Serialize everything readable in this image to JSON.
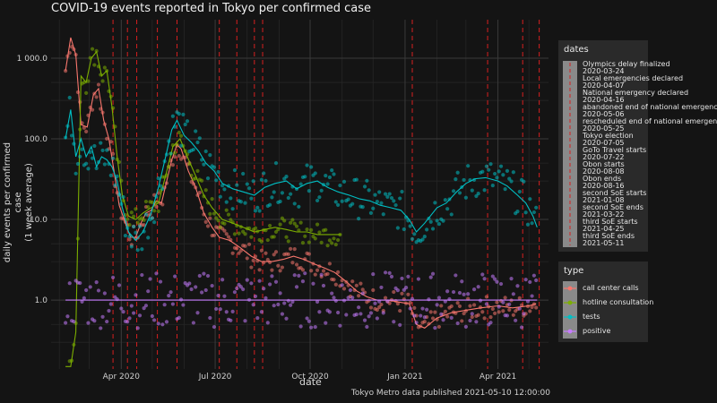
{
  "chart_data": {
    "type": "scatter",
    "title": "COVID-19 events reported in Tokyo per confirmed case",
    "xlabel": "date",
    "ylabel": "daily events per confirmed case\n(1 week average)",
    "caption": "Tokyo Metro data published 2021-05-10 12:00:00",
    "y_scale": "log10",
    "ylim": [
      0.14,
      3000
    ],
    "xlim": [
      "2020-01-24",
      "2021-05-20"
    ],
    "x_ticks": [
      {
        "date": "2020-04-01",
        "label": "Apr 2020"
      },
      {
        "date": "2020-07-01",
        "label": "Jul 2020"
      },
      {
        "date": "2020-10-01",
        "label": "Oct 2020"
      },
      {
        "date": "2021-01-01",
        "label": "Jan 2021"
      },
      {
        "date": "2021-04-01",
        "label": "Apr 2021"
      }
    ],
    "y_ticks": [
      {
        "value": 1,
        "label": "1.0"
      },
      {
        "value": 10,
        "label": "10.0"
      },
      {
        "value": 100,
        "label": "100.0"
      },
      {
        "value": 1000,
        "label": "1 000.0"
      }
    ],
    "grid": true,
    "legend_position": "right",
    "series": [
      {
        "name": "call center calls",
        "color": "#f8766d",
        "points": [
          [
            "2020-02-07",
            700
          ],
          [
            "2020-02-12",
            1800
          ],
          [
            "2020-02-17",
            1100
          ],
          [
            "2020-02-22",
            150
          ],
          [
            "2020-02-28",
            140
          ],
          [
            "2020-03-05",
            350
          ],
          [
            "2020-03-10",
            420
          ],
          [
            "2020-03-15",
            170
          ],
          [
            "2020-03-20",
            100
          ],
          [
            "2020-03-25",
            40
          ],
          [
            "2020-03-30",
            15
          ],
          [
            "2020-04-05",
            9
          ],
          [
            "2020-04-10",
            6
          ],
          [
            "2020-04-15",
            6
          ],
          [
            "2020-04-20",
            9
          ],
          [
            "2020-04-25",
            12
          ],
          [
            "2020-04-30",
            13
          ],
          [
            "2020-05-05",
            17
          ],
          [
            "2020-05-10",
            16
          ],
          [
            "2020-05-15",
            30
          ],
          [
            "2020-05-20",
            55
          ],
          [
            "2020-05-25",
            85
          ],
          [
            "2020-05-29",
            75
          ],
          [
            "2020-06-05",
            40
          ],
          [
            "2020-06-12",
            25
          ],
          [
            "2020-06-20",
            12
          ],
          [
            "2020-06-28",
            8
          ],
          [
            "2020-07-05",
            6
          ],
          [
            "2020-07-15",
            5.5
          ],
          [
            "2020-07-25",
            4.5
          ],
          [
            "2020-08-05",
            3.5
          ],
          [
            "2020-08-15",
            3
          ],
          [
            "2020-08-25",
            3
          ],
          [
            "2020-09-05",
            3.2
          ],
          [
            "2020-09-15",
            3.5
          ],
          [
            "2020-09-25",
            3.2
          ],
          [
            "2020-10-05",
            2.8
          ],
          [
            "2020-10-15",
            2.5
          ],
          [
            "2020-10-25",
            2.2
          ],
          [
            "2020-11-05",
            1.7
          ],
          [
            "2020-11-15",
            1.3
          ],
          [
            "2020-11-25",
            1.1
          ],
          [
            "2020-12-05",
            1.0
          ],
          [
            "2020-12-15",
            1.0
          ],
          [
            "2020-12-25",
            0.95
          ],
          [
            "2021-01-05",
            0.9
          ],
          [
            "2021-01-12",
            0.5
          ],
          [
            "2021-01-20",
            0.45
          ],
          [
            "2021-02-01",
            0.6
          ],
          [
            "2021-02-15",
            0.7
          ],
          [
            "2021-03-01",
            0.75
          ],
          [
            "2021-03-15",
            0.8
          ],
          [
            "2021-04-01",
            0.85
          ],
          [
            "2021-04-15",
            0.8
          ],
          [
            "2021-05-01",
            0.85
          ],
          [
            "2021-05-08",
            0.9
          ]
        ]
      },
      {
        "name": "hotline consultation",
        "color": "#7cae00",
        "points": [
          [
            "2020-02-07",
            0.15
          ],
          [
            "2020-02-12",
            0.15
          ],
          [
            "2020-02-17",
            0.4
          ],
          [
            "2020-02-22",
            600
          ],
          [
            "2020-02-27",
            500
          ],
          [
            "2020-03-03",
            1000
          ],
          [
            "2020-03-08",
            1200
          ],
          [
            "2020-03-13",
            600
          ],
          [
            "2020-03-18",
            700
          ],
          [
            "2020-03-23",
            250
          ],
          [
            "2020-03-28",
            60
          ],
          [
            "2020-04-02",
            20
          ],
          [
            "2020-04-08",
            11
          ],
          [
            "2020-04-15",
            10
          ],
          [
            "2020-04-22",
            12
          ],
          [
            "2020-04-30",
            14
          ],
          [
            "2020-05-07",
            16
          ],
          [
            "2020-05-14",
            35
          ],
          [
            "2020-05-21",
            80
          ],
          [
            "2020-05-28",
            100
          ],
          [
            "2020-06-04",
            60
          ],
          [
            "2020-06-12",
            35
          ],
          [
            "2020-06-20",
            20
          ],
          [
            "2020-06-28",
            14
          ],
          [
            "2020-07-08",
            10
          ],
          [
            "2020-07-18",
            9
          ],
          [
            "2020-07-28",
            8
          ],
          [
            "2020-08-08",
            7
          ],
          [
            "2020-08-18",
            7.5
          ],
          [
            "2020-08-28",
            8
          ],
          [
            "2020-09-08",
            7.5
          ],
          [
            "2020-09-18",
            7
          ],
          [
            "2020-09-28",
            7
          ],
          [
            "2020-10-08",
            6.5
          ],
          [
            "2020-10-18",
            6.5
          ],
          [
            "2020-10-31",
            6.5
          ]
        ]
      },
      {
        "name": "tests",
        "color": "#00bfc4",
        "points": [
          [
            "2020-02-07",
            100
          ],
          [
            "2020-02-12",
            230
          ],
          [
            "2020-02-17",
            60
          ],
          [
            "2020-02-22",
            100
          ],
          [
            "2020-02-27",
            60
          ],
          [
            "2020-03-03",
            80
          ],
          [
            "2020-03-08",
            45
          ],
          [
            "2020-03-13",
            60
          ],
          [
            "2020-03-18",
            55
          ],
          [
            "2020-03-23",
            45
          ],
          [
            "2020-03-28",
            30
          ],
          [
            "2020-04-02",
            14
          ],
          [
            "2020-04-08",
            7
          ],
          [
            "2020-04-15",
            5.5
          ],
          [
            "2020-04-22",
            7
          ],
          [
            "2020-04-30",
            12
          ],
          [
            "2020-05-07",
            25
          ],
          [
            "2020-05-14",
            60
          ],
          [
            "2020-05-20",
            130
          ],
          [
            "2020-05-25",
            170
          ],
          [
            "2020-06-01",
            110
          ],
          [
            "2020-06-08",
            90
          ],
          [
            "2020-06-15",
            70
          ],
          [
            "2020-06-22",
            50
          ],
          [
            "2020-06-30",
            40
          ],
          [
            "2020-07-08",
            28
          ],
          [
            "2020-07-18",
            24
          ],
          [
            "2020-07-28",
            22
          ],
          [
            "2020-08-08",
            20
          ],
          [
            "2020-08-18",
            25
          ],
          [
            "2020-08-28",
            28
          ],
          [
            "2020-09-08",
            30
          ],
          [
            "2020-09-18",
            24
          ],
          [
            "2020-09-28",
            28
          ],
          [
            "2020-10-08",
            30
          ],
          [
            "2020-10-18",
            25
          ],
          [
            "2020-10-28",
            22
          ],
          [
            "2020-11-08",
            20
          ],
          [
            "2020-11-18",
            18
          ],
          [
            "2020-11-28",
            17
          ],
          [
            "2020-12-08",
            15
          ],
          [
            "2020-12-18",
            14
          ],
          [
            "2020-12-28",
            13
          ],
          [
            "2021-01-05",
            10
          ],
          [
            "2021-01-12",
            7
          ],
          [
            "2021-01-20",
            9
          ],
          [
            "2021-02-01",
            14
          ],
          [
            "2021-02-10",
            16
          ],
          [
            "2021-02-20",
            22
          ],
          [
            "2021-03-01",
            28
          ],
          [
            "2021-03-10",
            32
          ],
          [
            "2021-03-20",
            33
          ],
          [
            "2021-04-01",
            30
          ],
          [
            "2021-04-10",
            26
          ],
          [
            "2021-04-20",
            20
          ],
          [
            "2021-04-28",
            16
          ],
          [
            "2021-05-05",
            11
          ],
          [
            "2021-05-09",
            8
          ]
        ]
      },
      {
        "name": "positive",
        "color": "#c77cff",
        "points": [
          [
            "2020-02-07",
            1
          ],
          [
            "2020-03-01",
            1
          ],
          [
            "2020-04-01",
            1
          ],
          [
            "2020-05-01",
            1
          ],
          [
            "2020-06-01",
            1
          ],
          [
            "2020-07-01",
            1
          ],
          [
            "2020-08-01",
            1
          ],
          [
            "2020-09-01",
            1
          ],
          [
            "2020-10-01",
            1
          ],
          [
            "2020-11-01",
            1
          ],
          [
            "2020-12-01",
            1
          ],
          [
            "2021-01-01",
            1
          ],
          [
            "2021-02-01",
            1
          ],
          [
            "2021-03-01",
            1
          ],
          [
            "2021-04-01",
            1
          ],
          [
            "2021-05-09",
            1
          ]
        ]
      }
    ],
    "events": [
      {
        "date": "2020-03-24",
        "name": "Olympics delay finalized"
      },
      {
        "date": "2020-04-07",
        "name": "Local emergencies declared"
      },
      {
        "date": "2020-04-16",
        "name": "National emergency declared"
      },
      {
        "date": "2020-05-06",
        "name": "abandoned end of national emergency"
      },
      {
        "date": "2020-05-25",
        "name": "rescheduled end of national emergency"
      },
      {
        "date": "2020-07-05",
        "name": "Tokyo election"
      },
      {
        "date": "2020-07-22",
        "name": "GoTo Travel starts"
      },
      {
        "date": "2020-08-08",
        "name": "Obon starts"
      },
      {
        "date": "2020-08-16",
        "name": "Obon ends"
      },
      {
        "date": "2021-01-08",
        "name": "second SoE starts"
      },
      {
        "date": "2021-03-22",
        "name": "second SoE ends"
      },
      {
        "date": "2021-04-25",
        "name": "third SoE starts"
      },
      {
        "date": "2021-05-11",
        "name": "third SoE ends"
      }
    ]
  },
  "legend": {
    "dates_title": "dates",
    "dates_items": [
      "Olympics delay finalized",
      "2020-03-24",
      "Local emergencies declared",
      "2020-04-07",
      "National emergency declared",
      "2020-04-16",
      "abandoned end of national emergency",
      "2020-05-06",
      "rescheduled end of national emergency",
      "2020-05-25",
      "Tokyo election",
      "2020-07-05",
      "GoTo Travel starts",
      "2020-07-22",
      "Obon starts",
      "2020-08-08",
      "Obon ends",
      "2020-08-16",
      "second SoE starts",
      "2021-01-08",
      "second SoE ends",
      "2021-03-22",
      "third SoE starts",
      "2021-04-25",
      "third SoE ends",
      "2021-05-11"
    ],
    "type_title": "type",
    "type_items": [
      {
        "label": "call center calls",
        "color": "#f8766d"
      },
      {
        "label": "hotline consultation",
        "color": "#7cae00"
      },
      {
        "label": "tests",
        "color": "#00bfc4"
      },
      {
        "label": "positive",
        "color": "#c77cff"
      }
    ]
  },
  "colors": {
    "background": "#141414",
    "panel": "#141414",
    "grid_major": "#3a3a3a",
    "grid_minor": "#262626",
    "event_line": "#d62020",
    "legend_bg": "#2a2a2a"
  }
}
